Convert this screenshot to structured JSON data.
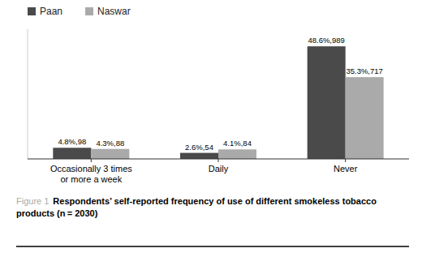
{
  "chart_data": {
    "type": "bar",
    "categories": [
      "Occasionally 3 times\nor more a week",
      "Daily",
      "Never"
    ],
    "series": [
      {
        "name": "Paan",
        "color": "#4a4a4a",
        "values": [
          4.8,
          2.6,
          48.6
        ],
        "value_labels": [
          "4.8%,98",
          "2.6%,54",
          "48.6%,989"
        ]
      },
      {
        "name": "Naswar",
        "color": "#aaaaaa",
        "values": [
          4.3,
          4.1,
          35.3
        ],
        "value_labels": [
          "4.3%,88",
          "4.1%,84",
          "35.3%,717"
        ]
      }
    ],
    "ylim": [
      0,
      56
    ],
    "data_labels": true,
    "tick_labels": "x",
    "legend": "upper left",
    "annotations": [
      {
        "text": "Figure 1",
        "color": "#aaaaaa"
      },
      {
        "text": "Respondents’ self-reported frequency of use of different smokeless tobacco products (n = 2030)"
      }
    ]
  }
}
